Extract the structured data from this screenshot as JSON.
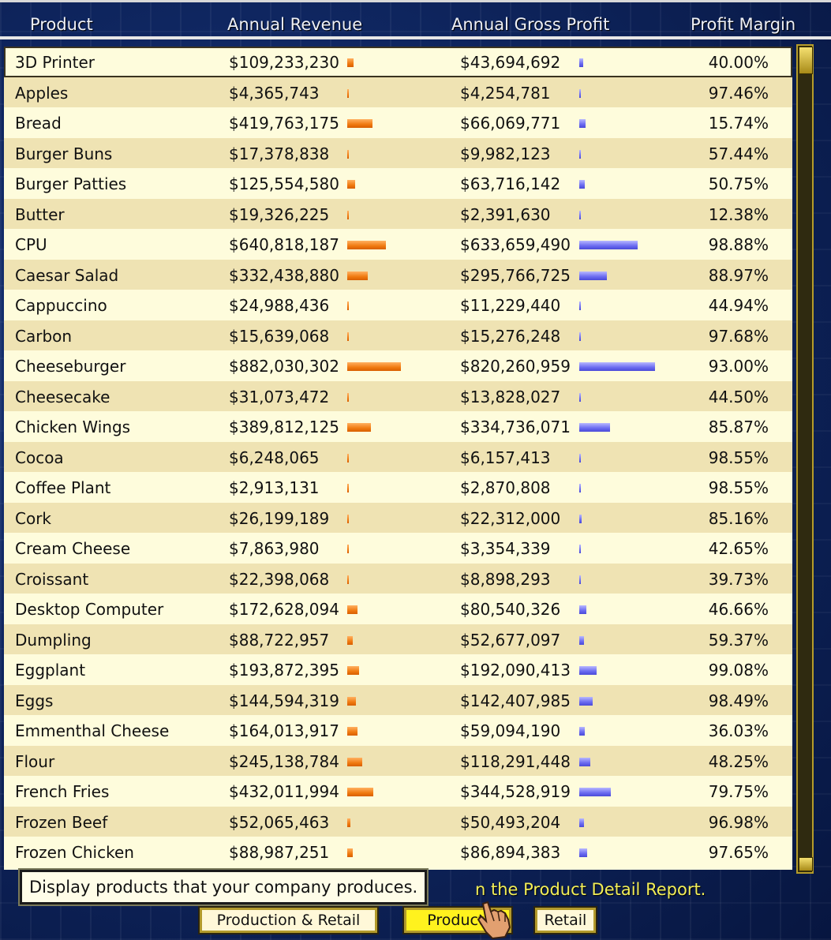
{
  "header": {
    "product": "Product",
    "revenue": "Annual Revenue",
    "gross_profit": "Annual Gross Profit",
    "margin": "Profit Margin"
  },
  "rows": [
    {
      "name": "3D Printer",
      "revenue": "$109,233,230",
      "gross_profit": "$43,694,692",
      "margin": "40.00%",
      "rev_bar": 0.1238,
      "gp_bar": 0.0533
    },
    {
      "name": "Apples",
      "revenue": "$4,365,743",
      "gross_profit": "$4,254,781",
      "margin": "97.46%",
      "rev_bar": 0.0049,
      "gp_bar": 0.0052
    },
    {
      "name": "Bread",
      "revenue": "$419,763,175",
      "gross_profit": "$66,069,771",
      "margin": "15.74%",
      "rev_bar": 0.4759,
      "gp_bar": 0.0805
    },
    {
      "name": "Burger Buns",
      "revenue": "$17,378,838",
      "gross_profit": "$9,982,123",
      "margin": "57.44%",
      "rev_bar": 0.0197,
      "gp_bar": 0.0122
    },
    {
      "name": "Burger Patties",
      "revenue": "$125,554,580",
      "gross_profit": "$63,716,142",
      "margin": "50.75%",
      "rev_bar": 0.1423,
      "gp_bar": 0.0777
    },
    {
      "name": "Butter",
      "revenue": "$19,326,225",
      "gross_profit": "$2,391,630",
      "margin": "12.38%",
      "rev_bar": 0.0219,
      "gp_bar": 0.0029
    },
    {
      "name": "CPU",
      "revenue": "$640,818,187",
      "gross_profit": "$633,659,490",
      "margin": "98.88%",
      "rev_bar": 0.7265,
      "gp_bar": 0.7725
    },
    {
      "name": "Caesar Salad",
      "revenue": "$332,438,880",
      "gross_profit": "$295,766,725",
      "margin": "88.97%",
      "rev_bar": 0.3769,
      "gp_bar": 0.3606
    },
    {
      "name": "Cappuccino",
      "revenue": "$24,988,436",
      "gross_profit": "$11,229,440",
      "margin": "44.94%",
      "rev_bar": 0.0283,
      "gp_bar": 0.0137
    },
    {
      "name": "Carbon",
      "revenue": "$15,639,068",
      "gross_profit": "$15,276,248",
      "margin": "97.68%",
      "rev_bar": 0.0177,
      "gp_bar": 0.0186
    },
    {
      "name": "Cheeseburger",
      "revenue": "$882,030,302",
      "gross_profit": "$820,260,959",
      "margin": "93.00%",
      "rev_bar": 1.0,
      "gp_bar": 1.0
    },
    {
      "name": "Cheesecake",
      "revenue": "$31,073,472",
      "gross_profit": "$13,828,027",
      "margin": "44.50%",
      "rev_bar": 0.0352,
      "gp_bar": 0.0169
    },
    {
      "name": "Chicken Wings",
      "revenue": "$389,812,125",
      "gross_profit": "$334,736,071",
      "margin": "85.87%",
      "rev_bar": 0.4419,
      "gp_bar": 0.4081
    },
    {
      "name": "Cocoa",
      "revenue": "$6,248,065",
      "gross_profit": "$6,157,413",
      "margin": "98.55%",
      "rev_bar": 0.0071,
      "gp_bar": 0.0075
    },
    {
      "name": "Coffee Plant",
      "revenue": "$2,913,131",
      "gross_profit": "$2,870,808",
      "margin": "98.55%",
      "rev_bar": 0.0033,
      "gp_bar": 0.0035
    },
    {
      "name": "Cork",
      "revenue": "$26,199,189",
      "gross_profit": "$22,312,000",
      "margin": "85.16%",
      "rev_bar": 0.0297,
      "gp_bar": 0.0272
    },
    {
      "name": "Cream Cheese",
      "revenue": "$7,863,980",
      "gross_profit": "$3,354,339",
      "margin": "42.65%",
      "rev_bar": 0.0089,
      "gp_bar": 0.0041
    },
    {
      "name": "Croissant",
      "revenue": "$22,398,068",
      "gross_profit": "$8,898,293",
      "margin": "39.73%",
      "rev_bar": 0.0254,
      "gp_bar": 0.0108
    },
    {
      "name": "Desktop Computer",
      "revenue": "$172,628,094",
      "gross_profit": "$80,540,326",
      "margin": "46.66%",
      "rev_bar": 0.1957,
      "gp_bar": 0.0982
    },
    {
      "name": "Dumpling",
      "revenue": "$88,722,957",
      "gross_profit": "$52,677,097",
      "margin": "59.37%",
      "rev_bar": 0.1006,
      "gp_bar": 0.0642
    },
    {
      "name": "Eggplant",
      "revenue": "$193,872,395",
      "gross_profit": "$192,090,413",
      "margin": "99.08%",
      "rev_bar": 0.2198,
      "gp_bar": 0.2342
    },
    {
      "name": "Eggs",
      "revenue": "$144,594,319",
      "gross_profit": "$142,407,985",
      "margin": "98.49%",
      "rev_bar": 0.1639,
      "gp_bar": 0.1736
    },
    {
      "name": "Emmenthal Cheese",
      "revenue": "$164,013,917",
      "gross_profit": "$59,094,190",
      "margin": "36.03%",
      "rev_bar": 0.1859,
      "gp_bar": 0.072
    },
    {
      "name": "Flour",
      "revenue": "$245,138,784",
      "gross_profit": "$118,291,448",
      "margin": "48.25%",
      "rev_bar": 0.2779,
      "gp_bar": 0.1442
    },
    {
      "name": "French Fries",
      "revenue": "$432,011,994",
      "gross_profit": "$344,528,919",
      "margin": "79.75%",
      "rev_bar": 0.4898,
      "gp_bar": 0.42
    },
    {
      "name": "Frozen Beef",
      "revenue": "$52,065,463",
      "gross_profit": "$50,493,204",
      "margin": "96.98%",
      "rev_bar": 0.059,
      "gp_bar": 0.0616
    },
    {
      "name": "Frozen Chicken",
      "revenue": "$88,987,251",
      "gross_profit": "$86,894,383",
      "margin": "97.65%",
      "rev_bar": 0.1009,
      "gp_bar": 0.1059
    }
  ],
  "tooltip": "Display products that your company produces.",
  "hint_fragment": "n the Product Detail Report.",
  "buttons": {
    "production_retail": "Production & Retail",
    "production": "Producti",
    "retail": "Retail"
  },
  "colors": {
    "revenue_bar": "#f07a10",
    "profit_bar": "#6a6af0",
    "row_light": "#fefcdc",
    "row_dark": "#efe3b3",
    "active_button": "#fff21e"
  }
}
